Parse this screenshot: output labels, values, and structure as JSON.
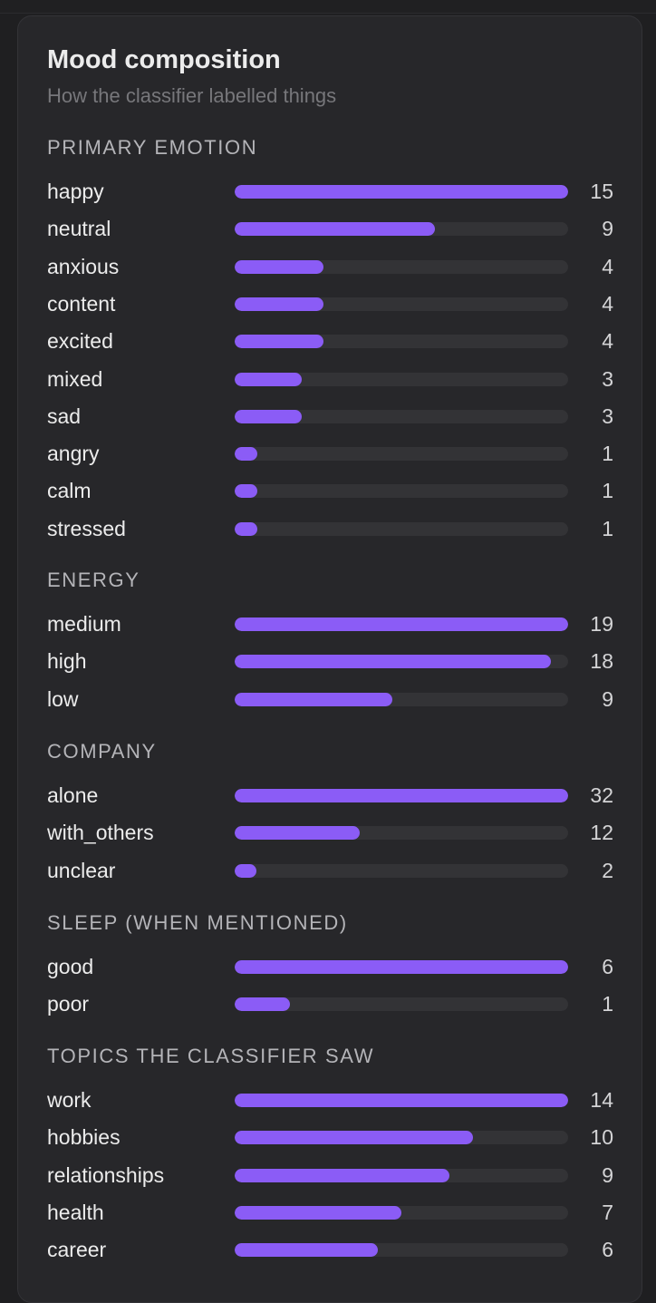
{
  "panel": {
    "title": "Mood composition",
    "subtitle": "How the classifier labelled things"
  },
  "sections": [
    {
      "title": "PRIMARY EMOTION",
      "rows": [
        {
          "label": "happy",
          "count": 15
        },
        {
          "label": "neutral",
          "count": 9
        },
        {
          "label": "anxious",
          "count": 4
        },
        {
          "label": "content",
          "count": 4
        },
        {
          "label": "excited",
          "count": 4
        },
        {
          "label": "mixed",
          "count": 3
        },
        {
          "label": "sad",
          "count": 3
        },
        {
          "label": "angry",
          "count": 1
        },
        {
          "label": "calm",
          "count": 1
        },
        {
          "label": "stressed",
          "count": 1
        }
      ]
    },
    {
      "title": "ENERGY",
      "rows": [
        {
          "label": "medium",
          "count": 19
        },
        {
          "label": "high",
          "count": 18
        },
        {
          "label": "low",
          "count": 9
        }
      ]
    },
    {
      "title": "COMPANY",
      "rows": [
        {
          "label": "alone",
          "count": 32
        },
        {
          "label": "with_others",
          "count": 12
        },
        {
          "label": "unclear",
          "count": 2
        }
      ]
    },
    {
      "title": "SLEEP (WHEN MENTIONED)",
      "rows": [
        {
          "label": "good",
          "count": 6
        },
        {
          "label": "poor",
          "count": 1
        }
      ]
    },
    {
      "title": "TOPICS THE CLASSIFIER SAW",
      "rows": [
        {
          "label": "work",
          "count": 14
        },
        {
          "label": "hobbies",
          "count": 10
        },
        {
          "label": "relationships",
          "count": 9
        },
        {
          "label": "health",
          "count": 7
        },
        {
          "label": "career",
          "count": 6
        }
      ]
    }
  ],
  "colors": {
    "bar_fill": "#8b5cf6",
    "bar_track": "#333336",
    "card_background": "#27272a"
  }
}
